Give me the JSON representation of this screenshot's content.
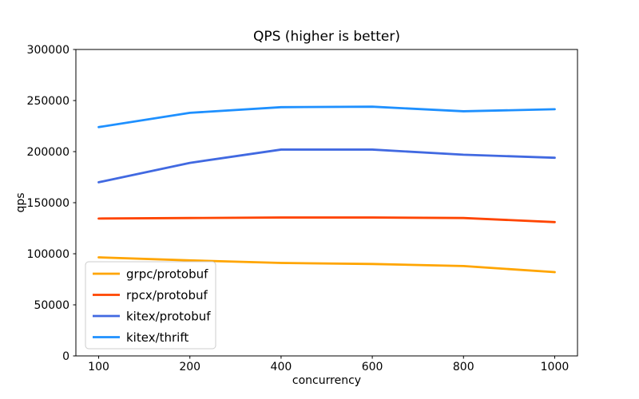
{
  "chart_data": {
    "type": "line",
    "title": "QPS (higher is better)",
    "xlabel": "concurrency",
    "ylabel": "qps",
    "x_categories": [
      "100",
      "200",
      "400",
      "600",
      "800",
      "1000"
    ],
    "ylim": [
      0,
      300000
    ],
    "y_ticks": [
      0,
      50000,
      100000,
      150000,
      200000,
      250000,
      300000
    ],
    "grid": false,
    "legend_position": "lower left",
    "line_width": 2.8,
    "axis_color": "#000000",
    "legend_border_color": "#cccccc",
    "series": [
      {
        "name": "grpc/protobuf",
        "color": "#FFA500",
        "values": [
          96500,
          93500,
          91000,
          90000,
          88000,
          82000
        ]
      },
      {
        "name": "rpcx/protobuf",
        "color": "#FF4500",
        "values": [
          134500,
          135000,
          135500,
          135500,
          135000,
          131000
        ]
      },
      {
        "name": "kitex/protobuf",
        "color": "#4169E1",
        "values": [
          170000,
          189000,
          202000,
          202000,
          197000,
          194000
        ]
      },
      {
        "name": "kitex/thrift",
        "color": "#1E90FF",
        "values": [
          224000,
          238000,
          243500,
          244000,
          239500,
          241500
        ]
      }
    ]
  }
}
